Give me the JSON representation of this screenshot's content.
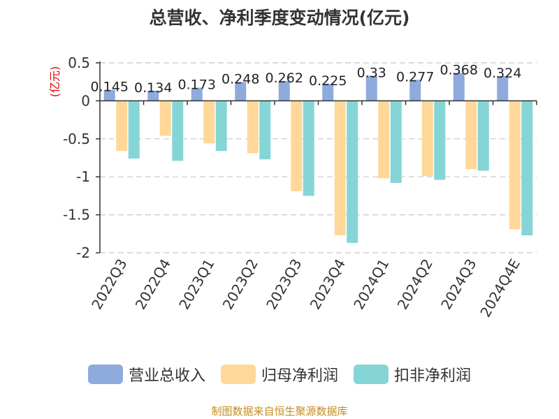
{
  "chart_data": {
    "type": "bar",
    "title": "总营收、净利季度变动情况(亿元)",
    "ylabel": "(亿元)",
    "xlabel": "",
    "ylim": [
      -2,
      0.5
    ],
    "yticks": [
      0.5,
      0,
      -0.5,
      -1,
      -1.5,
      -2
    ],
    "ytick_labels": [
      "0.5",
      "0",
      "-0.5",
      "-1",
      "-1.5",
      "-2"
    ],
    "grid": true,
    "legend_position": "bottom",
    "categories": [
      "2022Q3",
      "2022Q4",
      "2023Q1",
      "2023Q2",
      "2023Q3",
      "2023Q4",
      "2024Q1",
      "2024Q2",
      "2024Q3",
      "2024Q4E"
    ],
    "series": [
      {
        "name": "营业总收入",
        "color": "#8faadc",
        "values": [
          0.145,
          0.134,
          0.173,
          0.248,
          0.262,
          0.225,
          0.33,
          0.277,
          0.368,
          0.324
        ],
        "labels": [
          "0.145",
          "0.134",
          "0.173",
          "0.248",
          "0.262",
          "0.225",
          "0.33",
          "0.277",
          "0.368",
          "0.324"
        ]
      },
      {
        "name": "归母净利润",
        "color": "#ffd899",
        "values": [
          -0.66,
          -0.46,
          -0.56,
          -0.69,
          -1.19,
          -1.77,
          -1.02,
          -0.99,
          -0.9,
          -1.69
        ]
      },
      {
        "name": "扣非净利润",
        "color": "#86d5d6",
        "values": [
          -0.76,
          -0.79,
          -0.66,
          -0.77,
          -1.25,
          -1.87,
          -1.08,
          -1.04,
          -0.92,
          -1.77
        ]
      }
    ]
  },
  "source_note": "制图数据来自恒生聚源数据库"
}
